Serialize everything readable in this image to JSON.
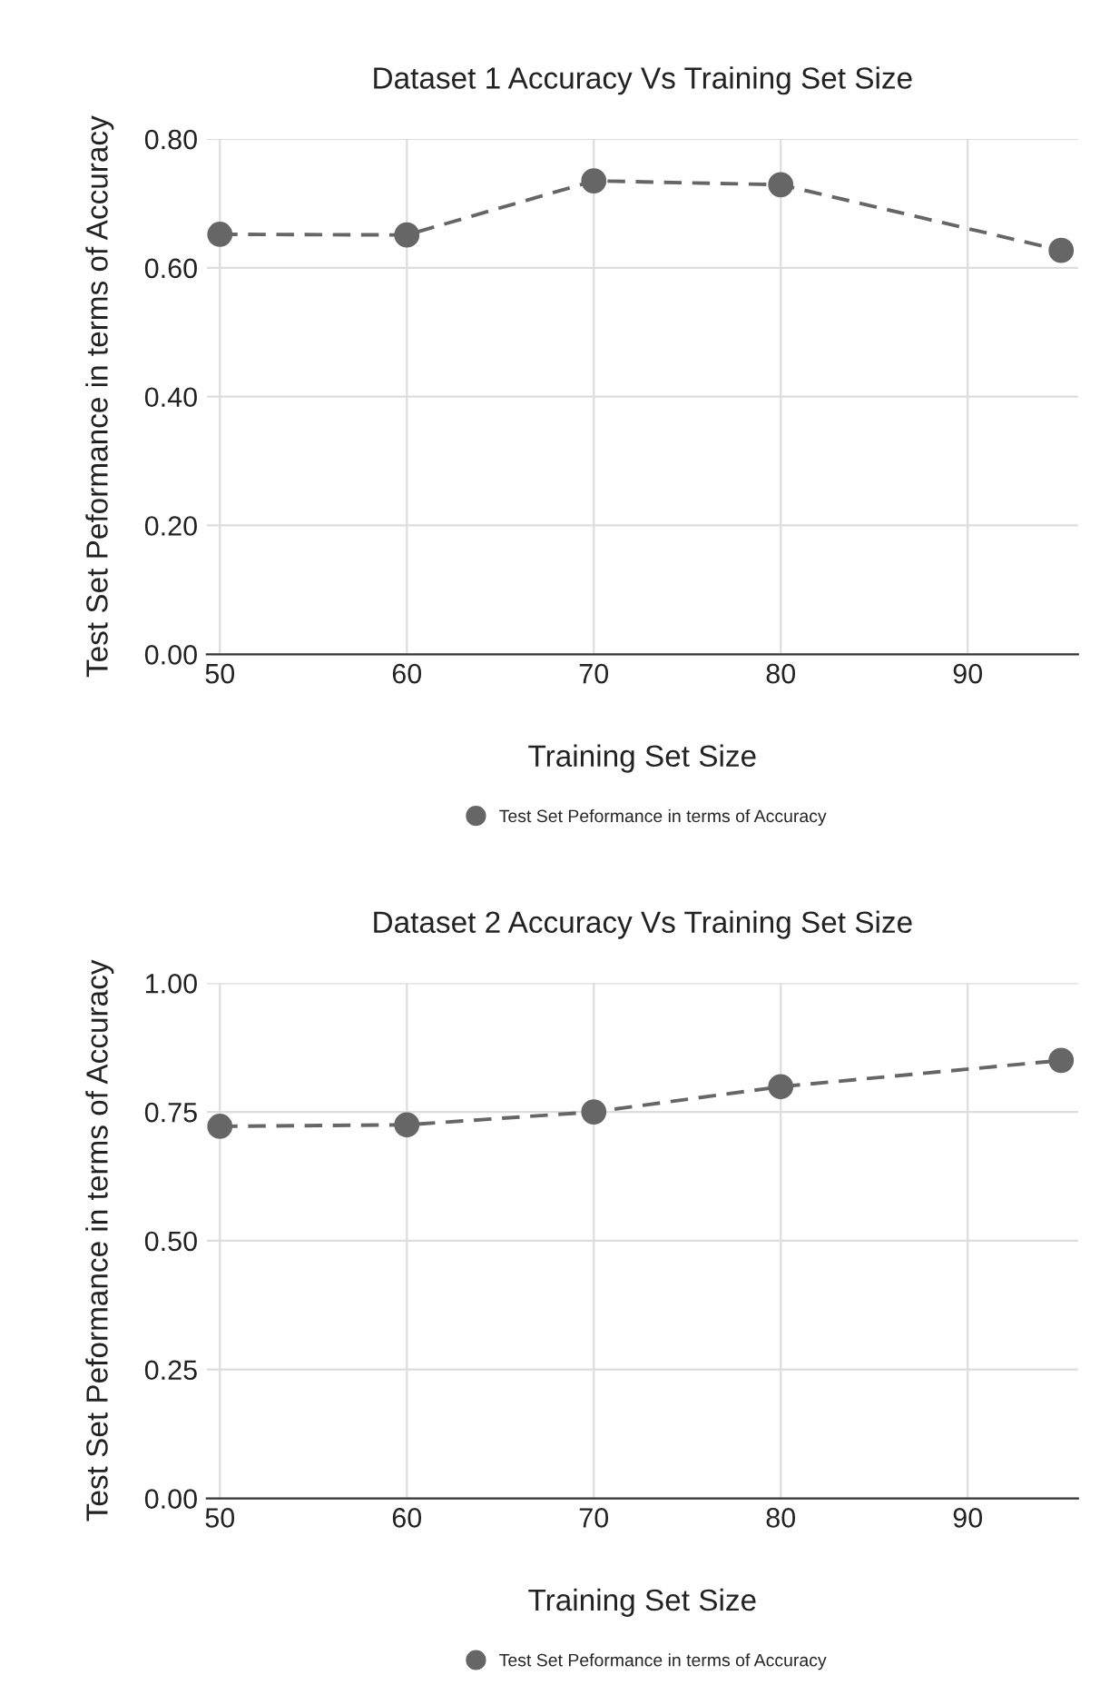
{
  "chart_data": [
    {
      "type": "line",
      "title": "Dataset 1 Accuracy Vs Training Set Size",
      "xlabel": "Training Set Size",
      "ylabel": "Test Set Peformance in terms of Accuracy",
      "x": [
        50,
        60,
        70,
        80,
        95
      ],
      "series": [
        {
          "name": "Test Set Peformance in terms of Accuracy",
          "color": "#666666",
          "values": [
            0.652,
            0.651,
            0.735,
            0.729,
            0.627
          ]
        }
      ],
      "xlim": [
        49.3,
        95.9
      ],
      "xticks": [
        50,
        60,
        70,
        80,
        90
      ],
      "ylim": [
        0,
        0.8
      ],
      "yticks": [
        {
          "value": 0,
          "label": "0.00"
        },
        {
          "value": 0.2,
          "label": "0.20"
        },
        {
          "value": 0.4,
          "label": "0.40"
        },
        {
          "value": 0.6,
          "label": "0.60"
        },
        {
          "value": 0.8,
          "label": "0.80"
        }
      ],
      "grid": true,
      "legend": "bottom",
      "marker": "circle",
      "line_style": "dashed"
    },
    {
      "type": "line",
      "title": "Dataset 2 Accuracy Vs Training Set Size",
      "xlabel": "Training Set Size",
      "ylabel": "Test Set Peformance in terms of Accuracy",
      "x": [
        50,
        60,
        70,
        80,
        95
      ],
      "series": [
        {
          "name": "Test Set Peformance in terms of Accuracy",
          "color": "#666666",
          "values": [
            0.722,
            0.725,
            0.75,
            0.799,
            0.85
          ]
        }
      ],
      "xlim": [
        49.3,
        95.9
      ],
      "xticks": [
        50,
        60,
        70,
        80,
        90
      ],
      "ylim": [
        0,
        1
      ],
      "yticks": [
        {
          "value": 0,
          "label": "0.00"
        },
        {
          "value": 0.25,
          "label": "0.25"
        },
        {
          "value": 0.5,
          "label": "0.50"
        },
        {
          "value": 0.75,
          "label": "0.75"
        },
        {
          "value": 1,
          "label": "1.00"
        }
      ],
      "grid": true,
      "legend": "bottom",
      "marker": "circle",
      "line_style": "dashed"
    }
  ]
}
